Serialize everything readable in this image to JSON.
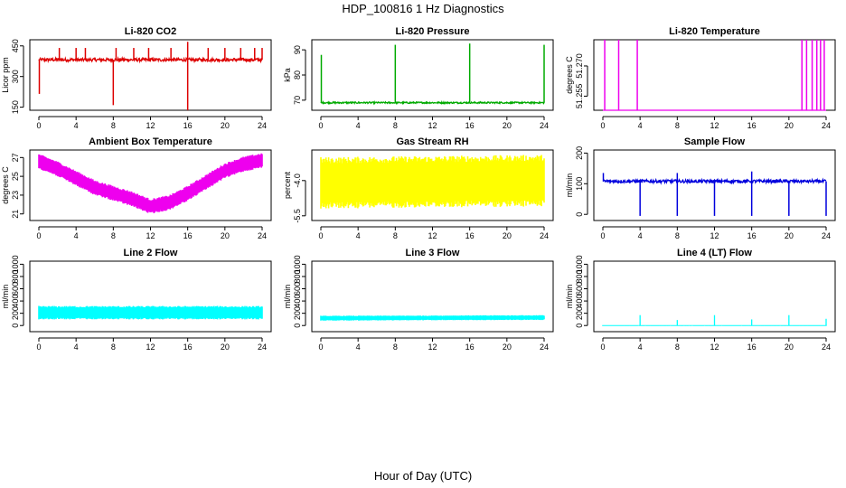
{
  "figure": {
    "title": "HDP_100816  1 Hz Diagnostics",
    "xlabel": "Hour of Day (UTC)"
  },
  "chart_data": [
    {
      "type": "line",
      "title": "Li-820 CO2",
      "ylabel": "Licor ppm",
      "color": "#dd0000",
      "xlim": [
        0,
        24
      ],
      "ylim": [
        135,
        480
      ],
      "xticks": [
        "0",
        "4",
        "8",
        "12",
        "16",
        "20",
        "24"
      ],
      "yticks": [
        150,
        300,
        450
      ],
      "ytick_labels": [
        "150",
        "300",
        "450"
      ],
      "baseline": 382,
      "noise": 8,
      "spikes_up": [
        [
          2.2,
          440
        ],
        [
          4.0,
          440
        ],
        [
          5.0,
          440
        ],
        [
          8.3,
          440
        ],
        [
          10.2,
          440
        ],
        [
          11.8,
          440
        ],
        [
          14.2,
          440
        ],
        [
          16.0,
          470
        ],
        [
          18.2,
          440
        ],
        [
          20.0,
          440
        ],
        [
          21.7,
          440
        ],
        [
          23.2,
          440
        ],
        [
          24.0,
          440
        ]
      ],
      "spikes_down": [
        [
          0.05,
          215
        ],
        [
          8.0,
          160
        ],
        [
          16.0,
          135
        ]
      ]
    },
    {
      "type": "line",
      "title": "Li-820 Pressure",
      "ylabel": "kPa",
      "color": "#00aa00",
      "xlim": [
        0,
        24
      ],
      "ylim": [
        66,
        94
      ],
      "xticks": [
        "0",
        "4",
        "8",
        "12",
        "16",
        "20",
        "24"
      ],
      "yticks": [
        70,
        80,
        90
      ],
      "ytick_labels": [
        "70",
        "80",
        "90"
      ],
      "baseline": 69,
      "noise": 0.3,
      "spikes_up": [
        [
          0.05,
          88
        ],
        [
          8.0,
          92
        ],
        [
          16.0,
          92.5
        ],
        [
          24.0,
          92
        ]
      ],
      "spikes_down": []
    },
    {
      "type": "line",
      "title": "Li-820 Temperature",
      "ylabel": "degrees C",
      "color": "#ee00ee",
      "xlim": [
        0,
        24
      ],
      "ylim": [
        51.248,
        51.283
      ],
      "xticks": [
        "0",
        "4",
        "8",
        "12",
        "16",
        "20",
        "24"
      ],
      "yticks": [
        51.255,
        51.27
      ],
      "ytick_labels": [
        "51.255",
        "51.270"
      ],
      "baseline": 51.248,
      "noise": 0,
      "spikes_up": [
        [
          0.2,
          51.283
        ],
        [
          1.7,
          51.283
        ],
        [
          3.7,
          51.283
        ],
        [
          21.4,
          51.283
        ],
        [
          21.9,
          51.283
        ],
        [
          22.5,
          51.283
        ],
        [
          23.0,
          51.283
        ],
        [
          23.4,
          51.283
        ],
        [
          23.8,
          51.283
        ]
      ],
      "spikes_down": []
    },
    {
      "type": "band",
      "title": "Ambient Box Temperature",
      "ylabel": "degrees C",
      "color": "#ee00ee",
      "xlim": [
        0,
        24
      ],
      "ylim": [
        20.3,
        27.8
      ],
      "xticks": [
        "0",
        "4",
        "8",
        "12",
        "16",
        "20",
        "24"
      ],
      "yticks": [
        21,
        23,
        25,
        27
      ],
      "ytick_labels": [
        "21",
        "23",
        "25",
        "27"
      ],
      "center": [
        [
          0,
          26.6
        ],
        [
          2,
          25.8
        ],
        [
          4,
          24.8
        ],
        [
          6,
          23.8
        ],
        [
          8,
          23.2
        ],
        [
          10,
          22.6
        ],
        [
          12,
          21.8
        ],
        [
          14,
          22.2
        ],
        [
          16,
          23.2
        ],
        [
          18,
          24.4
        ],
        [
          20,
          25.6
        ],
        [
          22,
          26.3
        ],
        [
          24,
          26.7
        ]
      ],
      "halfwidth": 0.8
    },
    {
      "type": "band",
      "title": "Gas Stream RH",
      "ylabel": "percent",
      "color": "#ffff00",
      "xlim": [
        0,
        24
      ],
      "ylim": [
        -5.7,
        -2.7
      ],
      "xticks": [
        "0",
        "4",
        "8",
        "12",
        "16",
        "20",
        "24"
      ],
      "yticks": [
        -5.5,
        -4.0
      ],
      "ytick_labels": [
        "-5.5",
        "-4.0"
      ],
      "center": [
        [
          0,
          -4.1
        ],
        [
          24,
          -4.0
        ]
      ],
      "halfwidth": 1.1
    },
    {
      "type": "line",
      "title": "Sample Flow",
      "ylabel": "ml/min",
      "color": "#0000dd",
      "xlim": [
        0,
        24
      ],
      "ylim": [
        -20,
        210
      ],
      "xticks": [
        "0",
        "4",
        "8",
        "12",
        "16",
        "20",
        "24"
      ],
      "yticks": [
        0,
        100,
        200
      ],
      "ytick_labels": [
        "0",
        "100",
        "200"
      ],
      "baseline": 108,
      "noise": 5,
      "spikes_up": [
        [
          0.05,
          135
        ],
        [
          8.0,
          135
        ],
        [
          16.0,
          140
        ]
      ],
      "spikes_down": [
        [
          4.0,
          -5
        ],
        [
          8.0,
          -5
        ],
        [
          12.0,
          -5
        ],
        [
          16.0,
          -5
        ],
        [
          20.0,
          -5
        ],
        [
          24.0,
          -5
        ]
      ]
    },
    {
      "type": "band",
      "title": "Line 2 Flow",
      "ylabel": "ml/min",
      "color": "#00ffff",
      "xlim": [
        0,
        24
      ],
      "ylim": [
        -100,
        1050
      ],
      "xticks": [
        "0",
        "4",
        "8",
        "12",
        "16",
        "20",
        "24"
      ],
      "yticks": [
        0,
        200,
        400,
        600,
        800,
        1000
      ],
      "ytick_labels": [
        "0",
        "200",
        "400",
        "600",
        "800",
        "1000"
      ],
      "center": [
        [
          0,
          210
        ],
        [
          24,
          210
        ]
      ],
      "halfwidth": 110
    },
    {
      "type": "band",
      "title": "Line 3 Flow",
      "ylabel": "ml/min",
      "color": "#00ffff",
      "xlim": [
        0,
        24
      ],
      "ylim": [
        -100,
        1050
      ],
      "xticks": [
        "0",
        "4",
        "8",
        "12",
        "16",
        "20",
        "24"
      ],
      "yticks": [
        0,
        200,
        400,
        600,
        800,
        1000
      ],
      "ytick_labels": [
        "0",
        "200",
        "400",
        "600",
        "800",
        "1000"
      ],
      "center": [
        [
          0,
          120
        ],
        [
          24,
          130
        ]
      ],
      "halfwidth": 40
    },
    {
      "type": "band",
      "title": "Line 4 (LT) Flow",
      "ylabel": "ml/min",
      "color": "#00ffff",
      "xlim": [
        0,
        24
      ],
      "ylim": [
        -100,
        1050
      ],
      "xticks": [
        "0",
        "4",
        "8",
        "12",
        "16",
        "20",
        "24"
      ],
      "yticks": [
        0,
        200,
        400,
        600,
        800,
        1000
      ],
      "ytick_labels": [
        "0",
        "200",
        "400",
        "600",
        "800",
        "1000"
      ],
      "center": [
        [
          0,
          0
        ],
        [
          24,
          0
        ]
      ],
      "halfwidth": 8,
      "spikes_up": [
        [
          4.0,
          170
        ],
        [
          8.0,
          90
        ],
        [
          12.0,
          170
        ],
        [
          16.0,
          100
        ],
        [
          20.0,
          170
        ],
        [
          24.0,
          110
        ]
      ]
    }
  ]
}
